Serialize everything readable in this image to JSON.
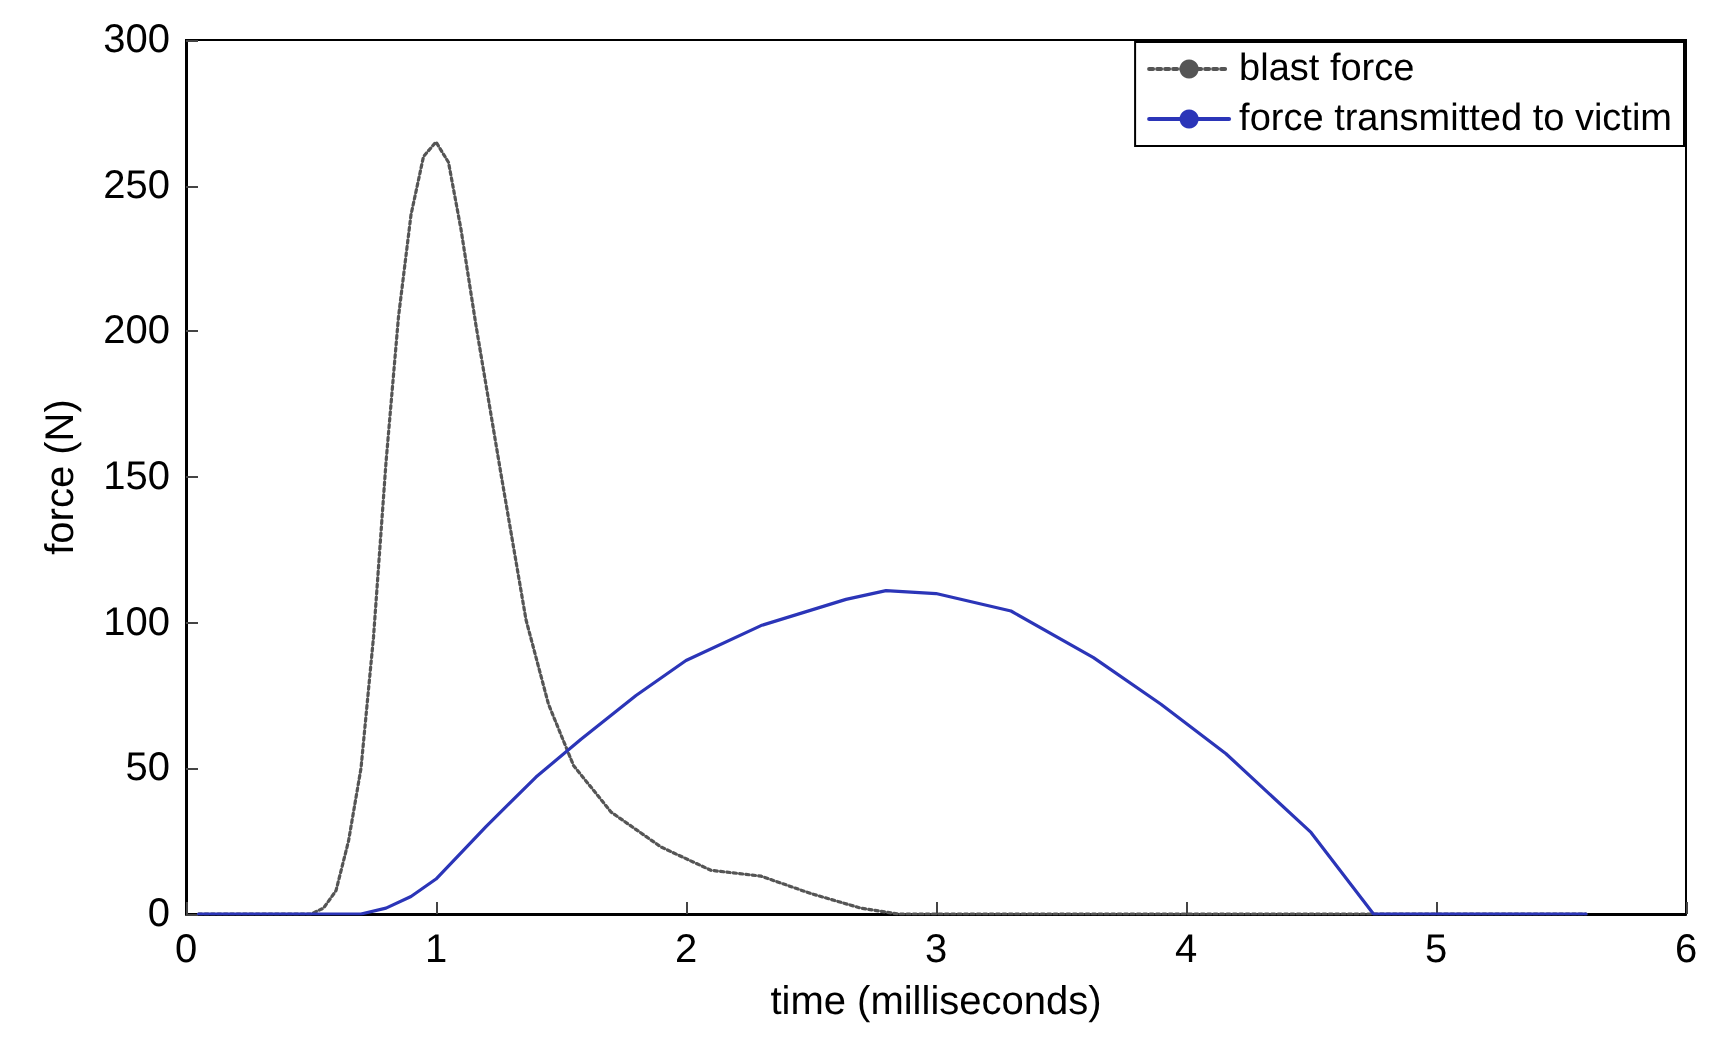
{
  "chart_data": {
    "type": "line",
    "xlabel": "time (milliseconds)",
    "ylabel": "force (N)",
    "xlim": [
      0,
      6
    ],
    "xticks": [
      0,
      1,
      2,
      3,
      4,
      5,
      6
    ],
    "ylim": [
      0,
      300
    ],
    "yticks": [
      0,
      50,
      100,
      150,
      200,
      250,
      300
    ],
    "grid": false,
    "legend": "top right",
    "marker": "none",
    "series": [
      {
        "name": "blast force",
        "color": "#555555",
        "line_style": "dotted",
        "x": [
          0.05,
          0.5,
          0.55,
          0.6,
          0.65,
          0.7,
          0.75,
          0.8,
          0.85,
          0.9,
          0.95,
          1.0,
          1.05,
          1.1,
          1.16,
          1.26,
          1.36,
          1.45,
          1.55,
          1.7,
          1.9,
          2.1,
          2.3,
          2.5,
          2.7,
          2.85,
          5.6
        ],
        "values": [
          0,
          0,
          2,
          8,
          25,
          50,
          95,
          155,
          205,
          240,
          260,
          265,
          258,
          235,
          202,
          151,
          101,
          72,
          51,
          35,
          23,
          15,
          13,
          7,
          2,
          0,
          0
        ]
      },
      {
        "name": "force transmitted to victim",
        "color": "#2b35b8",
        "line_style": "solid",
        "x": [
          0.05,
          0.7,
          0.8,
          0.9,
          1.0,
          1.2,
          1.4,
          1.58,
          1.8,
          2.0,
          2.3,
          2.64,
          2.8,
          3.0,
          3.3,
          3.63,
          3.9,
          4.16,
          4.5,
          4.75,
          5.6
        ],
        "values": [
          0,
          0,
          2,
          6,
          12,
          30,
          47,
          60,
          75,
          87,
          99,
          108,
          111,
          110,
          104,
          88,
          72,
          55,
          28,
          0,
          0
        ]
      }
    ]
  }
}
